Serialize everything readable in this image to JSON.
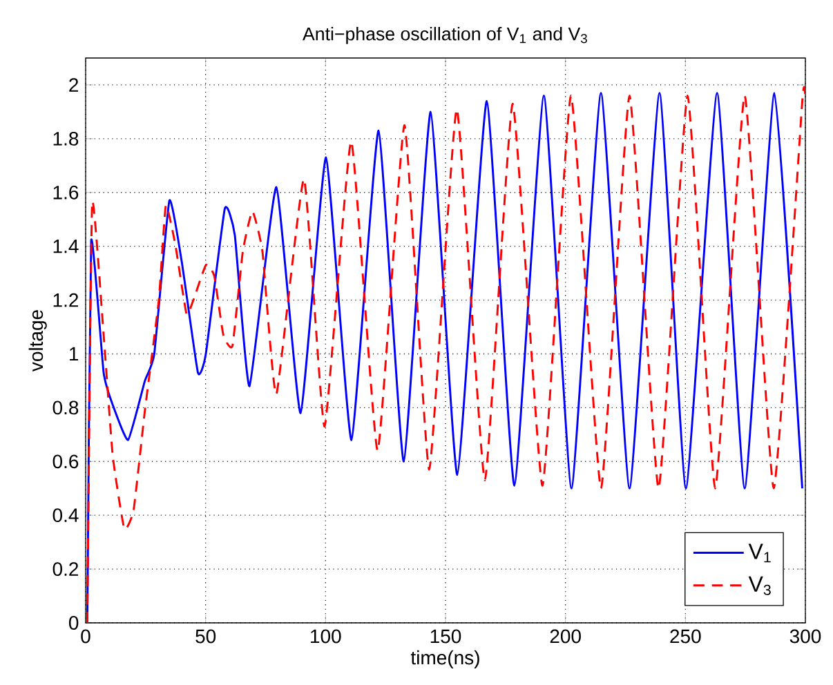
{
  "chart_data": {
    "type": "line",
    "title": "Anti−phase oscillation of V$_{1}$ and V$_{3}$",
    "xlabel": "time(ns)",
    "ylabel": "voltage",
    "xlim": [
      0,
      300
    ],
    "ylim": [
      0,
      2.1
    ],
    "xticks": [
      0,
      50,
      100,
      150,
      200,
      250,
      300
    ],
    "yticks": [
      0,
      0.2,
      0.4,
      0.6,
      0.8,
      1,
      1.2,
      1.4,
      1.6,
      1.8,
      2
    ],
    "grid": true,
    "legend": "bottom right",
    "series": [
      {
        "name": "V$_{1}$",
        "color": "#0000ff",
        "line_style": "solid",
        "x": [
          0.7,
          2.3,
          7.5,
          11.3,
          17.7,
          24.7,
          28.6,
          34.9,
          40.1,
          46.8,
          50.1,
          58,
          62.2,
          68.3,
          79.5,
          89.6,
          100.2,
          110.8,
          122.1,
          132.6,
          143.8,
          154.9,
          167.2,
          178.7,
          191,
          202.5,
          214.8,
          226.7,
          239.2,
          250.2,
          263.2,
          274.7,
          287.1,
          298.7
        ],
        "values": [
          0,
          1.42,
          0.93,
          0.81,
          0.68,
          0.9,
          1.0,
          1.57,
          1.34,
          0.93,
          1.0,
          1.54,
          1.44,
          0.88,
          1.62,
          0.78,
          1.73,
          0.68,
          1.83,
          0.6,
          1.9,
          0.55,
          1.94,
          0.51,
          1.96,
          0.5,
          1.97,
          0.5,
          1.97,
          0.5,
          1.97,
          0.5,
          1.97,
          0.5
        ]
      },
      {
        "name": "V$_{3}$",
        "color": "#ff0000",
        "line_style": "dashed",
        "x": [
          0.7,
          2.7,
          7.5,
          11.3,
          16.1,
          20,
          24.7,
          30.5,
          33.4,
          37.3,
          42,
          44.9,
          50.1,
          53.6,
          57.4,
          61.2,
          65.5,
          69.5,
          73.7,
          79.5,
          91,
          99.6,
          110.7,
          121.7,
          132.9,
          143.2,
          154.7,
          166.4,
          178,
          190.4,
          202.3,
          214.8,
          226.7,
          238.8,
          250.9,
          262.4,
          274.7,
          286.8,
          298.8,
          300
        ],
        "values": [
          0,
          1.56,
          1.07,
          0.62,
          0.35,
          0.42,
          0.79,
          1.2,
          1.55,
          1.41,
          1.15,
          1.2,
          1.33,
          1.29,
          1.07,
          1.03,
          1.38,
          1.53,
          1.38,
          0.85,
          1.65,
          0.73,
          1.79,
          0.64,
          1.85,
          0.57,
          1.91,
          0.53,
          1.93,
          0.51,
          1.96,
          0.5,
          1.96,
          0.5,
          1.96,
          0.5,
          1.96,
          0.5,
          1.95,
          1.94
        ]
      }
    ]
  }
}
